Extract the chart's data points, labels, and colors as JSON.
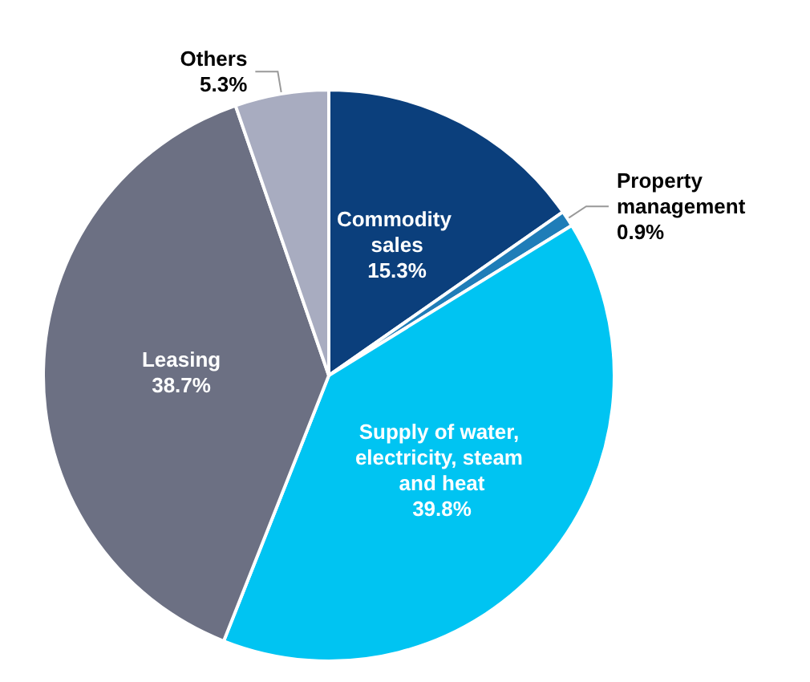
{
  "chart_data": {
    "type": "pie",
    "categories": [
      "Commodity sales",
      "Property management",
      "Supply of water, electricity, steam and heat",
      "Leasing",
      "Others"
    ],
    "values": [
      15.3,
      0.9,
      39.8,
      38.7,
      5.3
    ],
    "value_labels": [
      "15.3%",
      "0.9%",
      "39.8%",
      "38.7%",
      "5.3%"
    ],
    "colors": [
      "#0b3f7c",
      "#1f7db8",
      "#00c4f2",
      "#6c7083",
      "#a8acc0"
    ],
    "legend": false
  }
}
